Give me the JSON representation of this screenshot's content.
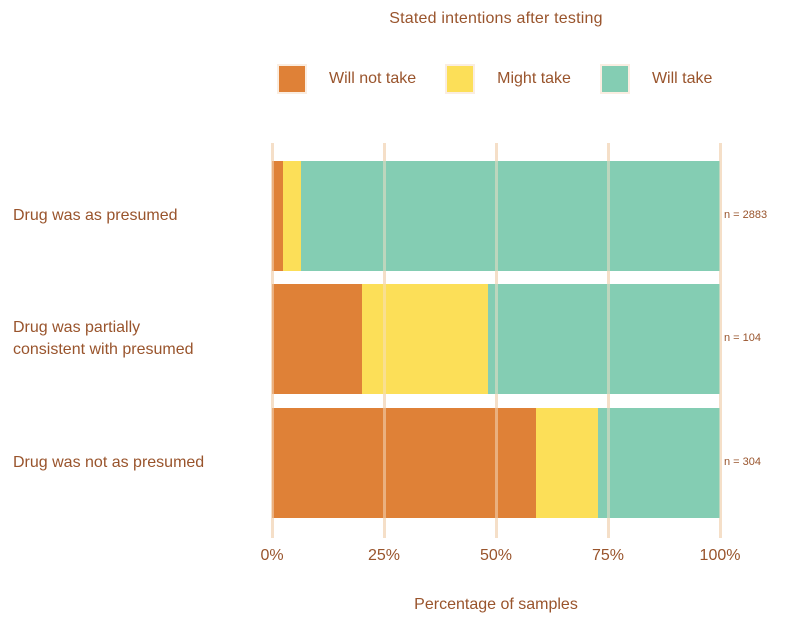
{
  "page": {
    "background": "#ffffff"
  },
  "colors": {
    "text": "#99542c",
    "gridline": "#f5dfc8",
    "background": "#ffffff"
  },
  "chart_data": {
    "type": "bar",
    "orientation": "horizontal",
    "stacked": true,
    "title": "Stated intentions after testing",
    "xlabel": "Percentage of samples",
    "unit": "percent",
    "xlim": [
      0,
      100
    ],
    "grid": "vertical",
    "legend_position": "top",
    "x_ticks": [
      {
        "value": 0,
        "label": "0%"
      },
      {
        "value": 25,
        "label": "25%"
      },
      {
        "value": 50,
        "label": "50%"
      },
      {
        "value": 75,
        "label": "75%"
      },
      {
        "value": 100,
        "label": "100%"
      }
    ],
    "categories": [
      {
        "label_lines": [
          "Drug was as presumed"
        ],
        "n_label": "n = 2883"
      },
      {
        "label_lines": [
          "Drug was partially",
          "consistent with presumed"
        ],
        "n_label": "n = 104"
      },
      {
        "label_lines": [
          "Drug was not as presumed"
        ],
        "n_label": "n = 304"
      }
    ],
    "series": [
      {
        "name": "Will not take",
        "color": "#df8137",
        "values": [
          2.5,
          20.2,
          58.9
        ]
      },
      {
        "name": "Might take",
        "color": "#fcdf58",
        "values": [
          3.9,
          28.1,
          13.8
        ]
      },
      {
        "name": "Will take",
        "color": "#84cdb3",
        "values": [
          93.6,
          51.7,
          27.3
        ]
      }
    ]
  }
}
